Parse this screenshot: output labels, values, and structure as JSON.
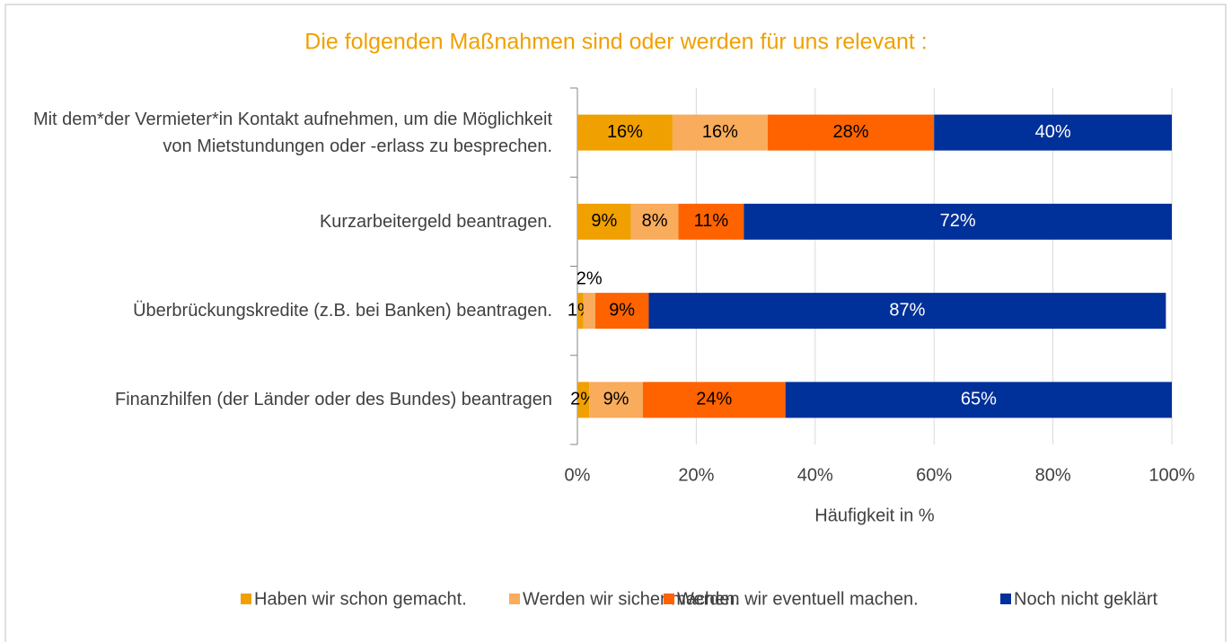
{
  "chart_data": {
    "type": "bar",
    "orientation": "horizontal",
    "stacked": true,
    "title": "Die folgenden Maßnahmen sind oder werden für uns relevant :",
    "categories": [
      "Mit dem*der Vermieter*in Kontakt aufnehmen, um die Möglichkeit von Mietstundungen oder -erlass zu besprechen.",
      "Kurzarbeitergeld beantragen.",
      "Überbrückungskredite (z.B. bei Banken) beantragen.",
      "Finanzhilfen (der Länder oder des Bundes) beantragen"
    ],
    "series": [
      {
        "name": "Haben wir schon gemacht.",
        "color": "#f0a000",
        "values": [
          16,
          9,
          1,
          2
        ],
        "value_labels": [
          "16%",
          "9%",
          "1%",
          "2%"
        ]
      },
      {
        "name": "Werden wir sicher machen.",
        "color": "#f9ac5b",
        "values": [
          16,
          8,
          2,
          9
        ],
        "value_labels": [
          "16%",
          "8%",
          "2%",
          "9%"
        ]
      },
      {
        "name": "Werden wir eventuell machen.",
        "color": "#fe6300",
        "values": [
          28,
          11,
          9,
          24
        ],
        "value_labels": [
          "28%",
          "11%",
          "9%",
          "24%"
        ]
      },
      {
        "name": "Noch nicht geklärt",
        "color": "#00309a",
        "values": [
          40,
          72,
          87,
          65
        ],
        "value_labels": [
          "40%",
          "72%",
          "87%",
          "65%"
        ]
      }
    ],
    "xlabel": "Häufigkeit in %",
    "xlim": [
      0,
      100
    ],
    "xticks": [
      {
        "value": 0,
        "label": "0%"
      },
      {
        "value": 20,
        "label": "20%"
      },
      {
        "value": 40,
        "label": "40%"
      },
      {
        "value": 60,
        "label": "60%"
      },
      {
        "value": 80,
        "label": "80%"
      },
      {
        "value": 100,
        "label": "100%"
      }
    ],
    "grid": true,
    "legend": "bottom"
  }
}
